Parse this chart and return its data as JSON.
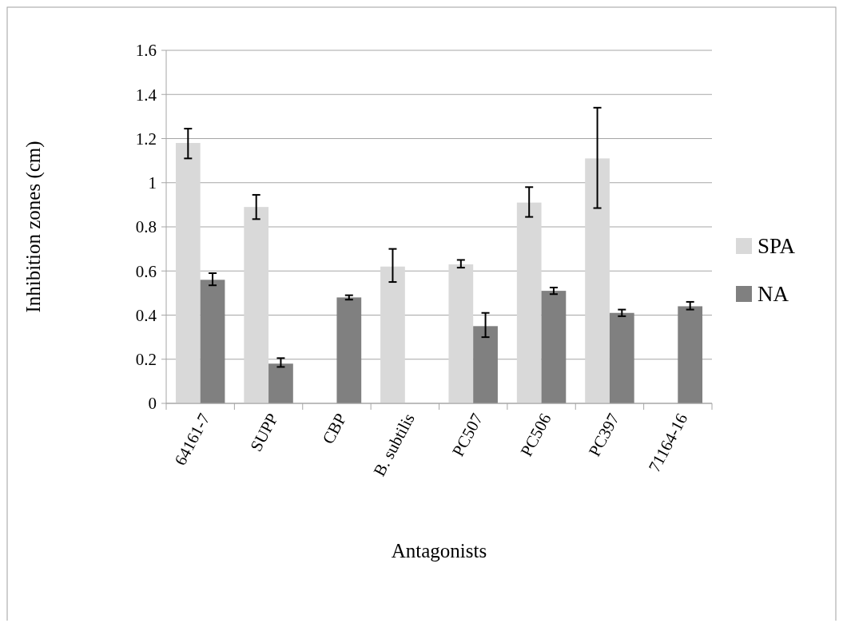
{
  "chart_data": {
    "type": "bar",
    "xlabel": "Antagonists",
    "ylabel": "Inhibition zones (cm)",
    "categories": [
      "64161-7",
      "SUPP",
      "CBP",
      "B. subtilis",
      "PC507",
      "PC506",
      "PC397",
      "71164-16"
    ],
    "series": [
      {
        "name": "SPA",
        "color": "#d9d9d9",
        "values": [
          1.18,
          0.89,
          null,
          0.62,
          0.63,
          0.91,
          1.11,
          null
        ],
        "errors": [
          [
            1.11,
            1.245
          ],
          [
            0.835,
            0.945
          ],
          null,
          [
            0.55,
            0.7
          ],
          [
            0.615,
            0.65
          ],
          [
            0.845,
            0.98
          ],
          [
            0.885,
            1.34
          ],
          null
        ]
      },
      {
        "name": "NA",
        "color": "#808080",
        "values": [
          0.56,
          0.18,
          0.48,
          null,
          0.35,
          0.51,
          0.41,
          0.44
        ],
        "errors": [
          [
            0.535,
            0.59
          ],
          [
            0.165,
            0.205
          ],
          [
            0.47,
            0.49
          ],
          null,
          [
            0.3,
            0.41
          ],
          [
            0.495,
            0.525
          ],
          [
            0.395,
            0.425
          ],
          [
            0.425,
            0.46
          ]
        ]
      }
    ],
    "ylim": [
      0,
      1.6
    ],
    "yticks": [
      0,
      0.2,
      0.4,
      0.6,
      0.8,
      1,
      1.2,
      1.4,
      1.6
    ],
    "grid": "y",
    "legend": "right"
  }
}
